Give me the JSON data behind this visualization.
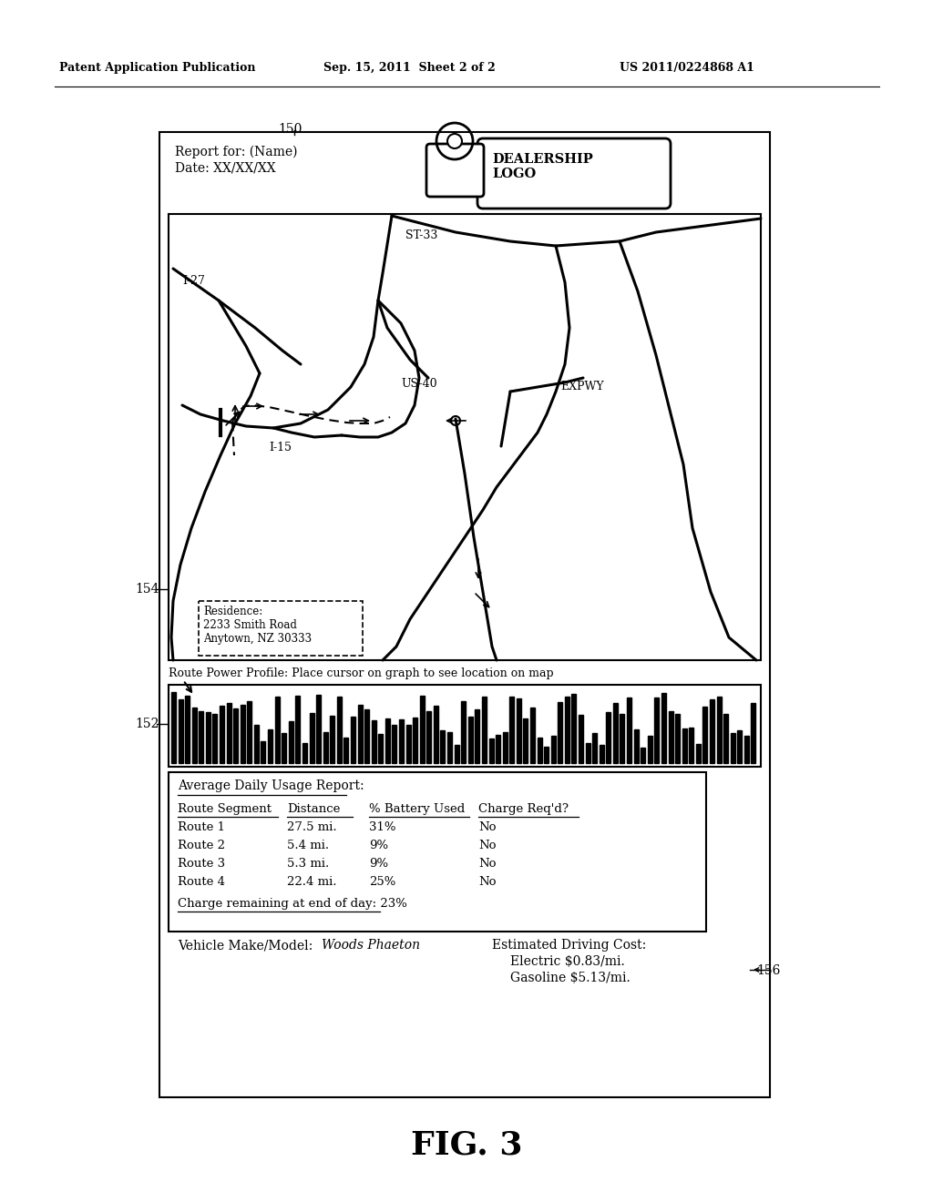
{
  "bg_color": "#ffffff",
  "header_text": "Patent Application Publication",
  "header_date": "Sep. 15, 2011  Sheet 2 of 2",
  "header_patent": "US 2011/0224868 A1",
  "fig_label": "FIG. 3",
  "label_150": "150",
  "label_152": "152",
  "label_154": "154",
  "label_156": "156",
  "report_for": "Report for: (Name)",
  "report_date": "Date: XX/XX/XX",
  "dealership_logo_text": "DEALERSHIP\nLOGO",
  "route_power_profile_text": "Route Power Profile: Place cursor on graph to see location on map",
  "avg_daily_title": "Average Daily Usage Report:",
  "table_headers": [
    "Route Segment",
    "Distance",
    "% Battery Used",
    "Charge Req’d?"
  ],
  "table_rows": [
    [
      "Route 1",
      "27.5 mi.",
      "31%",
      "No"
    ],
    [
      "Route 2",
      "5.4 mi.",
      "9%",
      "No"
    ],
    [
      "Route 3",
      "5.3 mi.",
      "9%",
      "No"
    ],
    [
      "Route 4",
      "22.4 mi.",
      "25%",
      "No"
    ]
  ],
  "charge_remaining": "Charge remaining at end of day: 23%",
  "vehicle_model": "Vehicle Make/Model: ",
  "vehicle_model_italic": "Woods Phaeton",
  "est_driving_cost": "Estimated Driving Cost:",
  "electric_cost": "Electric $0.83/mi.",
  "gasoline_cost": "Gasoline $5.13/mi.",
  "residence_text": "Residence:\n2233 Smith Road\nAnytown, NZ 30333"
}
